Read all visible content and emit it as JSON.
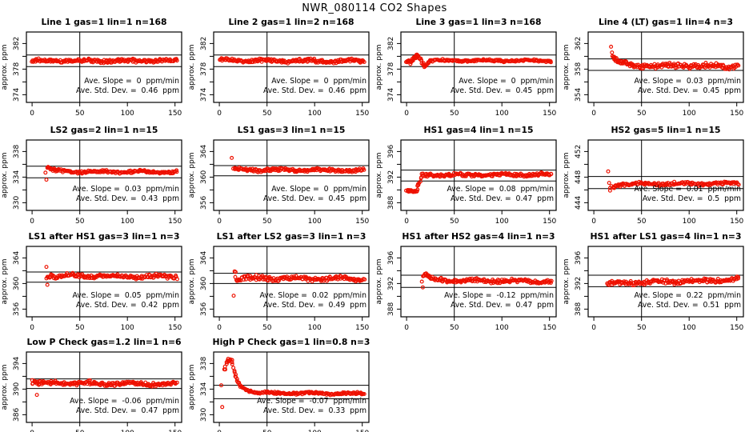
{
  "header": {
    "title": "NWR_080114  CO2 Shapes"
  },
  "styles": {
    "point_color": "#EE1100",
    "axis_color": "#000000",
    "background": "#FFFFFF"
  },
  "chart_data": {
    "type": "scatter",
    "title": "NWR_080114  CO2 Shapes",
    "ylabel": "approx. ppm",
    "layout": {
      "rows": 4,
      "cols": 4,
      "x_axis_ticks": [
        0,
        50,
        100,
        150
      ],
      "xlim": [
        -6,
        157
      ],
      "vline_x": 50,
      "grid": false,
      "marker": "open-circle"
    },
    "panels": [
      {
        "id": "line-1",
        "title": "Line 1 gas=1 lin=1 n=168",
        "yticks": [
          374,
          378,
          382
        ],
        "yminor": [
          376,
          380
        ],
        "ylim": [
          372.8,
          383.8
        ],
        "hlines": [
          380.2,
          378.4
        ],
        "slope_ppm_per_min": 0,
        "std_dev_ppm": 0.46,
        "annotation_slope": "Ave. Slope =  0  ppm/min",
        "annotation_stddev": "Ave. Std. Dev. =  0.46  ppm",
        "segments": [
          {
            "x0": 0,
            "x1": 152,
            "y0": 379.3,
            "y1": 379.3,
            "n": 200,
            "noise": 0.26,
            "wave": 0.1
          }
        ],
        "outliers": []
      },
      {
        "id": "line-2",
        "title": "Line 2 gas=1 lin=2 n=168",
        "yticks": [
          374,
          378,
          382
        ],
        "yminor": [
          376,
          380
        ],
        "ylim": [
          372.8,
          383.8
        ],
        "hlines": [
          380.2,
          378.4
        ],
        "slope_ppm_per_min": 0,
        "std_dev_ppm": 0.46,
        "annotation_slope": "Ave. Slope =  0  ppm/min",
        "annotation_stddev": "Ave. Std. Dev. =  0.46  ppm",
        "segments": [
          {
            "x0": 0,
            "x1": 152,
            "y0": 379.35,
            "y1": 379.25,
            "n": 200,
            "noise": 0.26,
            "wave": 0.12
          }
        ],
        "outliers": []
      },
      {
        "id": "line-3",
        "title": "Line 3 gas=1 lin=3 n=168",
        "yticks": [
          374,
          378,
          382
        ],
        "yminor": [
          376,
          380
        ],
        "ylim": [
          372.8,
          383.8
        ],
        "hlines": [
          380.2,
          378.4
        ],
        "slope_ppm_per_min": 0,
        "std_dev_ppm": 0.45,
        "annotation_slope": "Ave. Slope =  0  ppm/min",
        "annotation_stddev": "Ave. Std. Dev. =  0.45  ppm",
        "segments": [
          {
            "x0": 0,
            "x1": 4,
            "y0": 379.0,
            "y1": 379.1,
            "n": 8,
            "noise": 0.3,
            "wave": 0
          },
          {
            "x0": 4,
            "x1": 10,
            "y0": 379.2,
            "y1": 380.0,
            "n": 12,
            "noise": 0.25,
            "wave": 0
          },
          {
            "x0": 10,
            "x1": 13,
            "y0": 380.05,
            "y1": 380.0,
            "n": 6,
            "noise": 0.2,
            "wave": 0
          },
          {
            "x0": 13,
            "x1": 19,
            "y0": 379.9,
            "y1": 378.35,
            "n": 10,
            "noise": 0.3,
            "wave": 0
          },
          {
            "x0": 19,
            "x1": 25,
            "y0": 378.4,
            "y1": 379.4,
            "n": 10,
            "noise": 0.25,
            "wave": 0
          },
          {
            "x0": 25,
            "x1": 152,
            "y0": 379.35,
            "y1": 379.3,
            "n": 150,
            "noise": 0.15,
            "wave": 0.08
          }
        ],
        "outliers": []
      },
      {
        "id": "line-4-lt",
        "title": "Line 4 (LT) gas=1 lin=4 n=3",
        "yticks": [
          354,
          358,
          362
        ],
        "yminor": [
          356,
          360
        ],
        "ylim": [
          352.8,
          363.8
        ],
        "hlines": [
          359.6,
          357.8
        ],
        "slope_ppm_per_min": 0.03,
        "std_dev_ppm": 0.45,
        "annotation_slope": "Ave. Slope =  0.03  ppm/min",
        "annotation_stddev": "Ave. Std. Dev. =  0.45  ppm",
        "segments": [
          {
            "x0": 20,
            "x1": 26,
            "y0": 360.0,
            "y1": 359.2,
            "n": 14,
            "noise": 0.3,
            "wave": 0
          },
          {
            "x0": 26,
            "x1": 40,
            "y0": 359.15,
            "y1": 358.6,
            "n": 22,
            "noise": 0.3,
            "wave": 0.1
          },
          {
            "x0": 40,
            "x1": 152,
            "y0": 358.6,
            "y1": 358.45,
            "n": 140,
            "noise": 0.38,
            "wave": 0.15
          }
        ],
        "outliers": [
          [
            18,
            361.5
          ],
          [
            19,
            360.6
          ]
        ]
      },
      {
        "id": "ls2",
        "title": "LS2 gas=2 lin=1 n=15",
        "yticks": [
          330,
          334,
          338
        ],
        "yminor": [
          332,
          336
        ],
        "ylim": [
          328.8,
          339.8
        ],
        "hlines": [
          335.7,
          333.9
        ],
        "slope_ppm_per_min": 0.03,
        "std_dev_ppm": 0.43,
        "annotation_slope": "Ave. Slope =  0.03  ppm/min",
        "annotation_stddev": "Ave. Std. Dev. =  0.43  ppm",
        "segments": [
          {
            "x0": 16,
            "x1": 22,
            "y0": 335.5,
            "y1": 335.2,
            "n": 10,
            "noise": 0.25,
            "wave": 0
          },
          {
            "x0": 22,
            "x1": 40,
            "y0": 335.1,
            "y1": 334.85,
            "n": 24,
            "noise": 0.22,
            "wave": 0.08
          },
          {
            "x0": 40,
            "x1": 152,
            "y0": 334.85,
            "y1": 334.8,
            "n": 135,
            "noise": 0.2,
            "wave": 0.1
          }
        ],
        "outliers": [
          [
            14,
            334.7
          ],
          [
            15,
            333.6
          ]
        ]
      },
      {
        "id": "ls1",
        "title": "LS1 gas=3 lin=1 n=15",
        "yticks": [
          356,
          360,
          364
        ],
        "yminor": [
          358,
          362
        ],
        "ylim": [
          354.8,
          365.8
        ],
        "hlines": [
          361.8,
          360.2
        ],
        "slope_ppm_per_min": 0,
        "std_dev_ppm": 0.45,
        "annotation_slope": "Ave. Slope =  0  ppm/min",
        "annotation_stddev": "Ave. Std. Dev. =  0.45  ppm",
        "segments": [
          {
            "x0": 15,
            "x1": 152,
            "y0": 361.15,
            "y1": 361.05,
            "n": 175,
            "noise": 0.24,
            "wave": 0.1
          }
        ],
        "outliers": [
          [
            13,
            363.0
          ]
        ]
      },
      {
        "id": "hs1",
        "title": "HS1 gas=4 lin=1 n=15",
        "yticks": [
          388,
          392,
          396
        ],
        "yminor": [
          390,
          394
        ],
        "ylim": [
          386.8,
          397.8
        ],
        "hlines": [
          393.1,
          391.4
        ],
        "slope_ppm_per_min": 0.08,
        "std_dev_ppm": 0.47,
        "annotation_slope": "Ave. Slope =  0.08  ppm/min",
        "annotation_stddev": "Ave. Std. Dev. =  0.47  ppm",
        "segments": [
          {
            "x0": 0,
            "x1": 11,
            "y0": 389.9,
            "y1": 389.8,
            "n": 18,
            "noise": 0.2,
            "wave": 0
          },
          {
            "x0": 11,
            "x1": 16,
            "y0": 390.3,
            "y1": 392.0,
            "n": 7,
            "noise": 0.3,
            "wave": 0
          },
          {
            "x0": 16,
            "x1": 152,
            "y0": 392.3,
            "y1": 392.4,
            "n": 170,
            "noise": 0.24,
            "wave": 0.1
          }
        ],
        "outliers": [
          [
            12,
            390.9
          ]
        ]
      },
      {
        "id": "hs2",
        "title": "HS2 gas=5 lin=1 n=15",
        "yticks": [
          444,
          448,
          452
        ],
        "yminor": [
          446,
          450
        ],
        "ylim": [
          442.8,
          453.8
        ],
        "hlines": [
          448.1,
          446.2
        ],
        "slope_ppm_per_min": 0.01,
        "std_dev_ppm": 0.5,
        "annotation_slope": "Ave. Slope =  0.01  ppm/min",
        "annotation_stddev": "Ave. Std. Dev. =  0.5  ppm",
        "segments": [
          {
            "x0": 19,
            "x1": 30,
            "y0": 446.5,
            "y1": 446.8,
            "n": 16,
            "noise": 0.25,
            "wave": 0
          },
          {
            "x0": 30,
            "x1": 152,
            "y0": 446.9,
            "y1": 447.0,
            "n": 150,
            "noise": 0.25,
            "wave": 0.12
          }
        ],
        "outliers": [
          [
            15,
            448.9
          ],
          [
            16,
            447.1
          ],
          [
            17,
            446.3
          ],
          [
            17,
            445.9
          ]
        ]
      },
      {
        "id": "ls1-after-hs1",
        "title": "LS1 after HS1 gas=3 lin=1 n=3",
        "yticks": [
          356,
          360,
          364
        ],
        "yminor": [
          358,
          362
        ],
        "ylim": [
          354.8,
          365.8
        ],
        "hlines": [
          361.8,
          360.2
        ],
        "slope_ppm_per_min": 0.05,
        "std_dev_ppm": 0.42,
        "annotation_slope": "Ave. Slope =  0.05  ppm/min",
        "annotation_stddev": "Ave. Std. Dev. =  0.42  ppm",
        "segments": [
          {
            "x0": 16,
            "x1": 152,
            "y0": 361.2,
            "y1": 361.05,
            "n": 165,
            "noise": 0.3,
            "wave": 0.13
          }
        ],
        "outliers": [
          [
            15,
            362.6
          ],
          [
            15,
            360.8
          ],
          [
            16,
            359.8
          ]
        ]
      },
      {
        "id": "ls1-after-ls2",
        "title": "LS1 after LS2 gas=3 lin=1 n=3",
        "yticks": [
          356,
          360,
          364
        ],
        "yminor": [
          358,
          362
        ],
        "ylim": [
          354.8,
          365.8
        ],
        "hlines": [
          361.6,
          360.0
        ],
        "slope_ppm_per_min": 0.02,
        "std_dev_ppm": 0.49,
        "annotation_slope": "Ave. Slope =  0.02  ppm/min",
        "annotation_stddev": "Ave. Std. Dev. =  0.49  ppm",
        "segments": [
          {
            "x0": 17,
            "x1": 152,
            "y0": 360.85,
            "y1": 360.75,
            "n": 165,
            "noise": 0.35,
            "wave": 0.15
          }
        ],
        "outliers": [
          [
            16,
            361.9
          ],
          [
            17,
            361.8
          ],
          [
            15,
            358.1
          ]
        ]
      },
      {
        "id": "hs1-after-hs2",
        "title": "HS1 after HS2 gas=4 lin=1 n=3",
        "yticks": [
          388,
          392,
          396
        ],
        "yminor": [
          390,
          394
        ],
        "ylim": [
          386.8,
          397.8
        ],
        "hlines": [
          393.3,
          391.4
        ],
        "slope_ppm_per_min": -0.12,
        "std_dev_ppm": 0.47,
        "annotation_slope": "Ave. Slope =  -0.12  ppm/min",
        "annotation_stddev": "Ave. Std. Dev. =  0.47  ppm",
        "segments": [
          {
            "x0": 17,
            "x1": 20,
            "y0": 393.0,
            "y1": 393.6,
            "n": 6,
            "noise": 0.2,
            "wave": 0
          },
          {
            "x0": 20,
            "x1": 30,
            "y0": 393.4,
            "y1": 392.6,
            "n": 14,
            "noise": 0.25,
            "wave": 0
          },
          {
            "x0": 30,
            "x1": 152,
            "y0": 392.55,
            "y1": 392.3,
            "n": 150,
            "noise": 0.28,
            "wave": 0.12
          }
        ],
        "outliers": [
          [
            16,
            392.3
          ],
          [
            17,
            391.4
          ]
        ]
      },
      {
        "id": "hs1-after-ls1",
        "title": "HS1 after LS1 gas=4 lin=1 n=3",
        "yticks": [
          388,
          392,
          396
        ],
        "yminor": [
          390,
          394
        ],
        "ylim": [
          386.8,
          397.8
        ],
        "hlines": [
          393.3,
          391.5
        ],
        "slope_ppm_per_min": 0.22,
        "std_dev_ppm": 0.51,
        "annotation_slope": "Ave. Slope =  0.22  ppm/min",
        "annotation_stddev": "Ave. Std. Dev. =  0.51  ppm",
        "segments": [
          {
            "x0": 14,
            "x1": 152,
            "y0": 392.0,
            "y1": 392.6,
            "n": 170,
            "noise": 0.33,
            "wave": 0.14
          }
        ],
        "outliers": []
      },
      {
        "id": "low-p-check",
        "title": "Low P Check gas=1.2 lin=1 n=6",
        "yticks": [
          386,
          390,
          394
        ],
        "yminor": [
          388,
          392
        ],
        "ylim": [
          384.8,
          395.8
        ],
        "hlines": [
          391.6,
          390.1
        ],
        "slope_ppm_per_min": -0.06,
        "std_dev_ppm": 0.47,
        "annotation_slope": "Ave. Slope =  -0.06  ppm/min",
        "annotation_stddev": "Ave. Std. Dev. =  0.47  ppm",
        "segments": [
          {
            "x0": 0,
            "x1": 10,
            "y0": 391.2,
            "y1": 391.0,
            "n": 16,
            "noise": 0.35,
            "wave": 0
          },
          {
            "x0": 10,
            "x1": 152,
            "y0": 390.95,
            "y1": 390.8,
            "n": 175,
            "noise": 0.3,
            "wave": 0.13
          }
        ],
        "outliers": [
          [
            5,
            389.1
          ]
        ]
      },
      {
        "id": "high-p-check",
        "title": "High P Check gas=1 lin=0.8 n=3",
        "yticks": [
          330,
          334,
          338
        ],
        "yminor": [
          332,
          336
        ],
        "ylim": [
          328.8,
          339.8
        ],
        "hlines": [
          334.6,
          332.5
        ],
        "slope_ppm_per_min": -0.07,
        "std_dev_ppm": 0.33,
        "annotation_slope": "Ave. Slope =  -0.07  ppm/min",
        "annotation_stddev": "Ave. Std. Dev. =  0.33  ppm",
        "segments": [
          {
            "x0": 5,
            "x1": 8,
            "y0": 336.8,
            "y1": 338.3,
            "n": 5,
            "noise": 0.3,
            "wave": 0
          },
          {
            "x0": 8,
            "x1": 13,
            "y0": 338.5,
            "y1": 338.6,
            "n": 8,
            "noise": 0.25,
            "wave": 0
          },
          {
            "x0": 13,
            "x1": 17,
            "y0": 338.1,
            "y1": 336.2,
            "n": 6,
            "noise": 0.2,
            "wave": 0
          },
          {
            "x0": 17,
            "x1": 22,
            "y0": 335.9,
            "y1": 334.6,
            "n": 8,
            "noise": 0.15,
            "wave": 0
          },
          {
            "x0": 22,
            "x1": 30,
            "y0": 334.45,
            "y1": 333.75,
            "n": 11,
            "noise": 0.12,
            "wave": 0
          },
          {
            "x0": 30,
            "x1": 40,
            "y0": 333.7,
            "y1": 333.45,
            "n": 13,
            "noise": 0.12,
            "wave": 0
          },
          {
            "x0": 40,
            "x1": 152,
            "y0": 333.4,
            "y1": 333.3,
            "n": 140,
            "noise": 0.17,
            "wave": 0.1
          }
        ],
        "outliers": [
          [
            3,
            331.2
          ],
          [
            2,
            334.6
          ]
        ]
      }
    ]
  }
}
